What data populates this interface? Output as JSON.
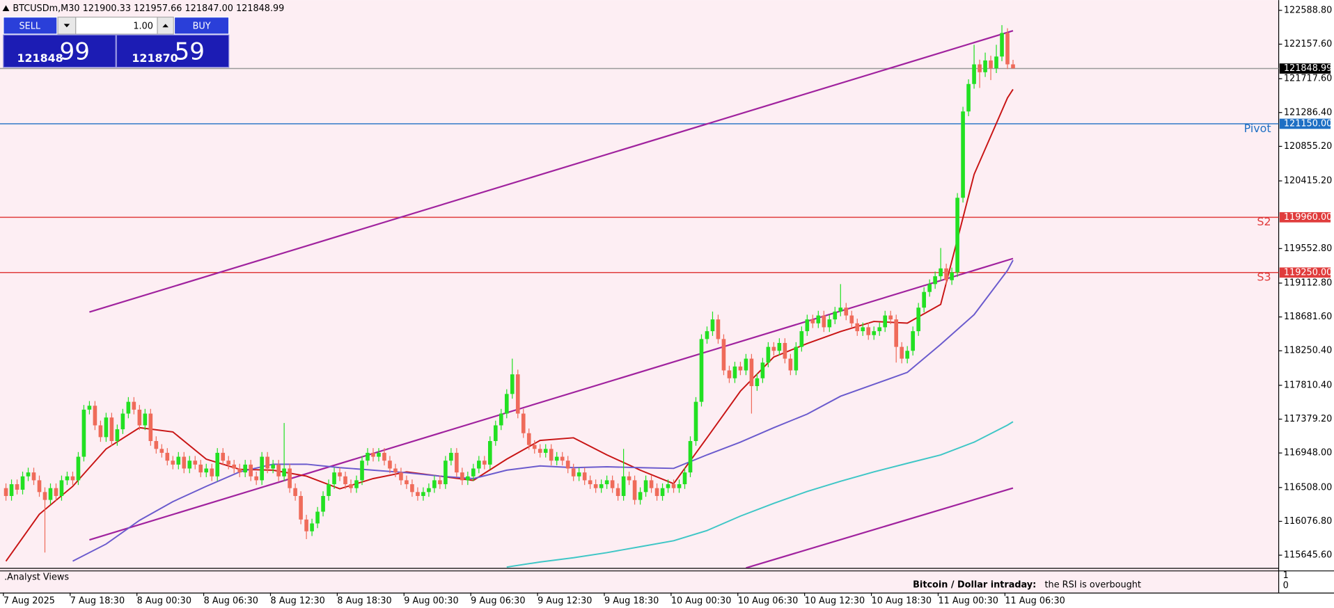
{
  "header": "BTCUSDm,M30  121900.33 121957.66 121847.00 121848.99",
  "trade_panel": {
    "sell": "SELL",
    "buy": "BUY",
    "lot": "1.00",
    "sell_price": "121848",
    "sell_pips": "99",
    "buy_price": "121870",
    "buy_pips": "59"
  },
  "indicator": {
    "name": ".Analyst Views",
    "title": "Bitcoin / Dollar intraday:",
    "text": "the RSI is overbought",
    "yticks": [
      1,
      0
    ]
  },
  "chart_data": {
    "type": "candlestick",
    "up_color": "#22e022",
    "down_color": "#ef6b5a",
    "background": "#fdeef3",
    "ylim": [
      115483,
      122719
    ],
    "yticks": [
      {
        "value": 122588.8,
        "label": "122588.80"
      },
      {
        "value": 122157.6,
        "label": "122157.60"
      },
      {
        "value": 121717.6,
        "label": "121717.60"
      },
      {
        "value": 121286.4,
        "label": "121286.40"
      },
      {
        "value": 120855.2,
        "label": "120855.20"
      },
      {
        "value": 120415.2,
        "label": "120415.20"
      },
      {
        "value": 119552.8,
        "label": "119552.80"
      },
      {
        "value": 119112.8,
        "label": "119112.80"
      },
      {
        "value": 118681.6,
        "label": "118681.60"
      },
      {
        "value": 118250.4,
        "label": "118250.40"
      },
      {
        "value": 117810.4,
        "label": "117810.40"
      },
      {
        "value": 117379.2,
        "label": "117379.20"
      },
      {
        "value": 116948,
        "label": "116948.00"
      },
      {
        "value": 116508,
        "label": "116508.00"
      },
      {
        "value": 116076.8,
        "label": "116076.80"
      },
      {
        "value": 115645.6,
        "label": "115645.60"
      }
    ],
    "categories": [
      "7 Aug 2025",
      null,
      null,
      null,
      null,
      null,
      null,
      null,
      null,
      null,
      null,
      null,
      "7 Aug 18:30",
      null,
      null,
      null,
      null,
      null,
      null,
      null,
      null,
      null,
      null,
      null,
      "8 Aug 00:30",
      null,
      null,
      null,
      null,
      null,
      null,
      null,
      null,
      null,
      null,
      null,
      "8 Aug 06:30",
      null,
      null,
      null,
      null,
      null,
      null,
      null,
      null,
      null,
      null,
      null,
      "8 Aug 12:30",
      null,
      null,
      null,
      null,
      null,
      null,
      null,
      null,
      null,
      null,
      null,
      "8 Aug 18:30",
      null,
      null,
      null,
      null,
      null,
      null,
      null,
      null,
      null,
      null,
      null,
      "9 Aug 00:30",
      null,
      null,
      null,
      null,
      null,
      null,
      null,
      null,
      null,
      null,
      null,
      "9 Aug 06:30",
      null,
      null,
      null,
      null,
      null,
      null,
      null,
      null,
      null,
      null,
      null,
      "9 Aug 12:30",
      null,
      null,
      null,
      null,
      null,
      null,
      null,
      null,
      null,
      null,
      null,
      "9 Aug 18:30",
      null,
      null,
      null,
      null,
      null,
      null,
      null,
      null,
      null,
      null,
      null,
      "10 Aug 00:30",
      null,
      null,
      null,
      null,
      null,
      null,
      null,
      null,
      null,
      null,
      null,
      "10 Aug 06:30",
      null,
      null,
      null,
      null,
      null,
      null,
      null,
      null,
      null,
      null,
      null,
      "10 Aug 12:30",
      null,
      null,
      null,
      null,
      null,
      null,
      null,
      null,
      null,
      null,
      null,
      "10 Aug 18:30",
      null,
      null,
      null,
      null,
      null,
      null,
      null,
      null,
      null,
      null,
      null,
      "11 Aug 00:30",
      null,
      null,
      null,
      null,
      null,
      null,
      null,
      null,
      null,
      null,
      null,
      "11 Aug 06:30",
      null
    ],
    "open": [
      116500,
      116400,
      116550,
      116480,
      116650,
      116700,
      116600,
      116450,
      116350,
      116500,
      116400,
      116600,
      116650,
      116600,
      116900,
      117500,
      117550,
      117300,
      117150,
      117400,
      117100,
      117250,
      117450,
      117600,
      117500,
      117300,
      117450,
      117100,
      117000,
      116950,
      116850,
      116800,
      116900,
      116750,
      116850,
      116800,
      116700,
      116750,
      116650,
      116950,
      116850,
      116800,
      116750,
      116700,
      116800,
      116650,
      116600,
      116900,
      116750,
      116800,
      116650,
      116750,
      116500,
      116400,
      116100,
      115950,
      116050,
      116200,
      116400,
      116550,
      116700,
      116650,
      116550,
      116500,
      116600,
      116850,
      116950,
      116900,
      116950,
      116850,
      116750,
      116700,
      116600,
      116550,
      116450,
      116400,
      116450,
      116500,
      116600,
      116550,
      116850,
      116950,
      116700,
      116600,
      116650,
      116750,
      116850,
      116800,
      117100,
      117300,
      117450,
      117700,
      117950,
      117450,
      117200,
      117050,
      117000,
      116950,
      117000,
      116850,
      116900,
      116850,
      116750,
      116650,
      116700,
      116600,
      116550,
      116500,
      116550,
      116600,
      116500,
      116400,
      116650,
      116600,
      116350,
      116450,
      116600,
      116500,
      116400,
      116500,
      116550,
      116500,
      116550,
      116700,
      117100,
      117600,
      118400,
      118500,
      118650,
      118400,
      118000,
      117900,
      118050,
      118000,
      118150,
      117800,
      117900,
      118100,
      118300,
      118250,
      118350,
      118150,
      118000,
      118300,
      118500,
      118650,
      118600,
      118700,
      118550,
      118650,
      118750,
      118800,
      118700,
      118600,
      118500,
      118550,
      118450,
      118500,
      118550,
      118700,
      118650,
      118300,
      118150,
      118250,
      118500,
      118800,
      119000,
      119100,
      119200,
      119300,
      119150,
      119250,
      120200,
      121300,
      121650,
      121900,
      121800,
      121950,
      121850,
      122000,
      122300,
      121900.33
    ],
    "high": [
      116560,
      116610,
      116610,
      116710,
      116760,
      116760,
      116660,
      116510,
      116560,
      116560,
      116660,
      116710,
      116710,
      116960,
      117560,
      117610,
      117610,
      117360,
      117460,
      117460,
      117310,
      117510,
      117660,
      117660,
      117560,
      117510,
      117510,
      117160,
      117060,
      117010,
      116910,
      116960,
      116960,
      116910,
      116910,
      116860,
      116810,
      116810,
      117010,
      117010,
      116910,
      116860,
      116810,
      116860,
      116860,
      116710,
      116960,
      116960,
      116860,
      116860,
      117330,
      116810,
      116560,
      116460,
      116160,
      116110,
      116260,
      116460,
      116610,
      116760,
      116760,
      116710,
      116610,
      116660,
      116910,
      117010,
      117010,
      117010,
      117010,
      116910,
      116810,
      116760,
      116660,
      116610,
      116510,
      116510,
      116560,
      116660,
      116660,
      116910,
      117010,
      117010,
      116760,
      116710,
      116810,
      116910,
      116910,
      117160,
      117360,
      117510,
      117760,
      118150,
      118010,
      117510,
      117260,
      117110,
      117060,
      117060,
      117060,
      116960,
      116960,
      116910,
      116810,
      116760,
      116760,
      116660,
      116610,
      116610,
      116660,
      116660,
      116560,
      117000,
      116710,
      116660,
      116510,
      116660,
      116660,
      116560,
      116560,
      116610,
      116610,
      116610,
      116760,
      117160,
      117660,
      118460,
      118560,
      118750,
      118710,
      118460,
      118060,
      118110,
      118110,
      118210,
      118210,
      117960,
      118160,
      118360,
      118360,
      118410,
      118410,
      118210,
      118360,
      118560,
      118710,
      118710,
      118760,
      118760,
      118710,
      118810,
      119100,
      118860,
      118760,
      118660,
      118610,
      118610,
      118560,
      118610,
      118760,
      118760,
      118710,
      118360,
      118310,
      118560,
      118860,
      119060,
      119160,
      119260,
      119560,
      119360,
      119310,
      120260,
      121360,
      121710,
      122150,
      121960,
      122050,
      122010,
      122150,
      122400,
      122360,
      121957.66
    ],
    "low": [
      116340,
      116340,
      116420,
      116420,
      116590,
      116540,
      116390,
      115680,
      116290,
      116340,
      116340,
      116540,
      116540,
      116540,
      116840,
      117440,
      117240,
      117090,
      117090,
      117040,
      117040,
      117190,
      117390,
      117440,
      117240,
      117240,
      117040,
      116940,
      116890,
      116790,
      116740,
      116740,
      116690,
      116690,
      116740,
      116640,
      116640,
      116590,
      116590,
      116790,
      116740,
      116690,
      116640,
      116640,
      116590,
      116540,
      116540,
      116690,
      116690,
      116590,
      116590,
      116440,
      116340,
      116040,
      115850,
      115890,
      115990,
      116140,
      116340,
      116490,
      116590,
      116490,
      116440,
      116440,
      116540,
      116790,
      116840,
      116840,
      116790,
      116690,
      116640,
      116540,
      116490,
      116390,
      116340,
      116340,
      116390,
      116440,
      116490,
      116490,
      116790,
      116640,
      116540,
      116540,
      116590,
      116690,
      116740,
      116740,
      117040,
      117240,
      117390,
      117640,
      117390,
      117140,
      116990,
      116940,
      116890,
      116890,
      116790,
      116790,
      116790,
      116690,
      116590,
      116590,
      116540,
      116490,
      116440,
      116440,
      116490,
      116440,
      116340,
      116340,
      116540,
      116290,
      116290,
      116390,
      116440,
      116340,
      116340,
      116440,
      116440,
      116440,
      116490,
      116640,
      117040,
      117540,
      118340,
      118440,
      118340,
      117940,
      117840,
      117840,
      117940,
      117940,
      117450,
      117740,
      117840,
      118040,
      118190,
      118190,
      118090,
      117940,
      117940,
      118240,
      118440,
      118540,
      118540,
      118490,
      118490,
      118590,
      118690,
      118640,
      118540,
      118440,
      118440,
      118390,
      118390,
      118440,
      118490,
      118590,
      118100,
      118090,
      118090,
      118190,
      118440,
      118740,
      118940,
      119040,
      119140,
      119090,
      119090,
      119190,
      120140,
      121240,
      121590,
      121600,
      121740,
      121700,
      121790,
      121940,
      121840,
      121847
    ],
    "close": [
      116400,
      116550,
      116480,
      116650,
      116700,
      116600,
      116450,
      116350,
      116500,
      116400,
      116600,
      116650,
      116600,
      116900,
      117500,
      117550,
      117300,
      117150,
      117400,
      117100,
      117250,
      117450,
      117600,
      117500,
      117300,
      117450,
      117100,
      117000,
      116950,
      116850,
      116800,
      116900,
      116750,
      116850,
      116800,
      116700,
      116750,
      116650,
      116950,
      116850,
      116800,
      116750,
      116700,
      116800,
      116650,
      116600,
      116900,
      116750,
      116800,
      116650,
      116750,
      116500,
      116400,
      116100,
      115950,
      116050,
      116200,
      116400,
      116550,
      116700,
      116650,
      116550,
      116500,
      116600,
      116850,
      116950,
      116900,
      116950,
      116850,
      116750,
      116700,
      116600,
      116550,
      116450,
      116400,
      116450,
      116500,
      116600,
      116550,
      116850,
      116950,
      116700,
      116600,
      116650,
      116750,
      116850,
      116800,
      117100,
      117300,
      117450,
      117700,
      117950,
      117450,
      117200,
      117050,
      117000,
      116950,
      117000,
      116850,
      116900,
      116850,
      116750,
      116650,
      116700,
      116600,
      116550,
      116500,
      116550,
      116600,
      116500,
      116400,
      116650,
      116600,
      116350,
      116450,
      116600,
      116500,
      116400,
      116500,
      116550,
      116500,
      116550,
      116700,
      117100,
      117600,
      118400,
      118500,
      118650,
      118400,
      118000,
      117900,
      118050,
      118000,
      118150,
      117800,
      117900,
      118100,
      118300,
      118250,
      118350,
      118150,
      118000,
      118300,
      118500,
      118650,
      118600,
      118700,
      118550,
      118650,
      118750,
      118800,
      118700,
      118600,
      118500,
      118550,
      118450,
      118500,
      118550,
      118700,
      118650,
      118300,
      118150,
      118250,
      118500,
      118800,
      119000,
      119100,
      119200,
      119300,
      119150,
      119250,
      120200,
      121300,
      121650,
      121900,
      121800,
      121950,
      121850,
      122000,
      122300,
      121900.33,
      121848.99
    ],
    "overlays": [
      {
        "color": "#c81414",
        "x": [
          "7 Aug 12:30",
          "7 Aug 15:30",
          "7 Aug 18:30",
          "7 Aug 21:30",
          "8 Aug 00:30",
          "8 Aug 03:30",
          "8 Aug 06:30",
          "8 Aug 09:30",
          "8 Aug 12:30",
          "8 Aug 15:30",
          "8 Aug 18:30",
          "8 Aug 21:30",
          "9 Aug 00:30",
          "9 Aug 03:30",
          "9 Aug 06:30",
          "9 Aug 09:30",
          "9 Aug 12:30",
          "9 Aug 15:30",
          "9 Aug 18:30",
          "9 Aug 21:30",
          "10 Aug 00:30",
          "10 Aug 03:30",
          "10 Aug 06:30",
          "10 Aug 09:30",
          "10 Aug 12:30",
          "10 Aug 15:30",
          "10 Aug 18:30",
          "10 Aug 21:30",
          "11 Aug 00:30",
          "11 Aug 03:30",
          "11 Aug 06:30",
          "11 Aug 07:00"
        ],
        "values": [
          115570,
          116166,
          116523,
          117000,
          117270,
          117216,
          116870,
          116740,
          116729,
          116653,
          116491,
          116621,
          116707,
          116653,
          116599,
          116870,
          117108,
          117141,
          116924,
          116729,
          116556,
          117141,
          117736,
          118170,
          118343,
          118495,
          118624,
          118603,
          118841,
          120498,
          121473,
          121582
        ]
      },
      {
        "color": "#6a5acd",
        "x": [
          "7 Aug 18:30",
          "7 Aug 21:30",
          "8 Aug 00:30",
          "8 Aug 03:30",
          "8 Aug 06:30",
          "8 Aug 09:30",
          "8 Aug 12:30",
          "8 Aug 15:30",
          "8 Aug 18:30",
          "8 Aug 21:30",
          "9 Aug 00:30",
          "9 Aug 03:30",
          "9 Aug 06:30",
          "9 Aug 09:30",
          "9 Aug 12:30",
          "9 Aug 15:30",
          "9 Aug 18:30",
          "9 Aug 21:30",
          "10 Aug 00:30",
          "10 Aug 03:30",
          "10 Aug 06:30",
          "10 Aug 09:30",
          "10 Aug 12:30",
          "10 Aug 15:30",
          "10 Aug 18:30",
          "10 Aug 21:30",
          "11 Aug 00:30",
          "11 Aug 03:30",
          "11 Aug 06:30",
          "11 Aug 07:00"
        ],
        "values": [
          115570,
          115787,
          116090,
          116328,
          116523,
          116707,
          116805,
          116805,
          116761,
          116729,
          116696,
          116653,
          116621,
          116729,
          116783,
          116761,
          116772,
          116761,
          116751,
          116924,
          117086,
          117270,
          117444,
          117671,
          117823,
          117975,
          118332,
          118711,
          119274,
          119404
        ]
      },
      {
        "color": "#3ec6c6",
        "x": [
          "9 Aug 09:30",
          "9 Aug 12:30",
          "9 Aug 15:30",
          "9 Aug 18:30",
          "9 Aug 21:30",
          "10 Aug 00:30",
          "10 Aug 03:30",
          "10 Aug 06:30",
          "10 Aug 09:30",
          "10 Aug 12:30",
          "10 Aug 15:30",
          "10 Aug 18:30",
          "10 Aug 21:30",
          "11 Aug 00:30",
          "11 Aug 03:30",
          "11 Aug 06:30",
          "11 Aug 07:00"
        ],
        "values": [
          115494,
          115559,
          115613,
          115678,
          115754,
          115830,
          115960,
          116144,
          116306,
          116458,
          116588,
          116707,
          116816,
          116924,
          117086,
          117303,
          117346
        ]
      }
    ],
    "trendlines": [
      {
        "color": "#a0229e",
        "x": [
          "7 Aug 20:00",
          "11 Aug 07:00"
        ],
        "values": [
          118744,
          122329
        ]
      },
      {
        "color": "#a0229e",
        "x": [
          "7 Aug 20:00",
          "11 Aug 07:00"
        ],
        "values": [
          115841,
          119426
        ]
      },
      {
        "color": "#a0229e",
        "x": [
          "10 Aug 07:00",
          "11 Aug 07:00"
        ],
        "values": [
          115483,
          116501
        ]
      }
    ],
    "levels": [
      {
        "name": "Pivot",
        "value": 121150,
        "label": "121150.00",
        "color": "#1e6fc4"
      },
      {
        "name": "S2",
        "value": 119960,
        "label": "119960.00",
        "color": "#e03c3c"
      },
      {
        "name": "S3",
        "value": 119250,
        "label": "119250.00",
        "color": "#e03c3c"
      },
      {
        "value": 121848.99,
        "label": "121848.99",
        "color": "#9a9a9a"
      }
    ]
  }
}
